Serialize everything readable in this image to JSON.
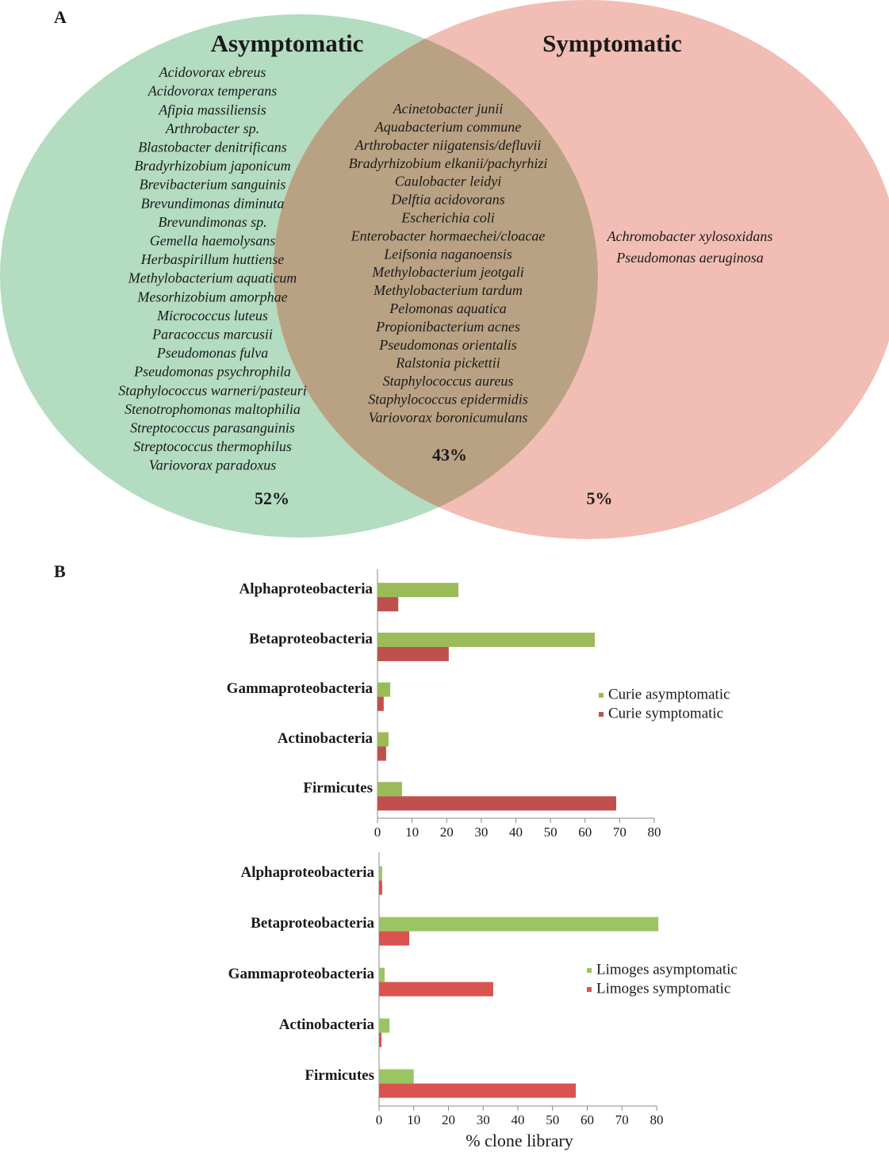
{
  "panel_labels": [
    "A",
    "B"
  ],
  "chart_data": [
    {
      "type": "venn",
      "sets": [
        {
          "name": "Asymptomatic",
          "color": "#b3dcc1",
          "members": [
            "Acidovorax ebreus",
            "Acidovorax temperans",
            "Afipia massiliensis",
            "Arthrobacter sp.",
            "Blastobacter denitrificans",
            "Bradyrhizobium japonicum",
            "Brevibacterium sanguinis",
            "Brevundimonas diminuta",
            "Brevundimonas sp.",
            "Gemella haemolysans",
            "Herbaspirillum huttiense",
            "Methylobacterium aquaticum",
            "Mesorhizobium amorphae",
            "Micrococcus luteus",
            "Paracoccus marcusii",
            "Pseudomonas fulva",
            "Pseudomonas psychrophila",
            "Staphylococcus warneri/pasteuri",
            "Stenotrophomonas maltophilia",
            "Streptococcus parasanguinis",
            "Streptococcus thermophilus",
            "Variovorax paradoxus"
          ]
        },
        {
          "name": "Symptomatic",
          "color": "#f2bdb4",
          "members": [
            "Achromobacter xylosoxidans",
            "Pseudomonas aeruginosa"
          ]
        }
      ],
      "intersection": {
        "color": "#b9a283",
        "members": [
          "Acinetobacter junii",
          "Aquabacterium commune",
          "Arthrobacter niigatensis/defluvii",
          "Bradyrhizobium elkanii/pachyrhizi",
          "Caulobacter leidyi",
          "Delftia acidovorans",
          "Escherichia coli",
          "Enterobacter hormaechei/cloacae",
          "Leifsonia naganoensis",
          "Methylobacterium jeotgali",
          "Methylobacterium tardum",
          "Pelomonas aquatica",
          "Propionibacterium acnes",
          "Pseudomonas orientalis",
          "Ralstonia pickettii",
          "Staphylococcus aureus",
          "Staphylococcus epidermidis",
          "Variovorax boronicumulans"
        ]
      },
      "values": [
        52,
        43,
        5
      ],
      "value_labels": [
        "52%",
        "43%",
        "5%"
      ]
    },
    {
      "type": "barh",
      "categories": [
        "Alphaproteobacteria",
        "Betaproteobacteria",
        "Gammaproteobacteria",
        "Actinobacteria",
        "Firmicutes"
      ],
      "series": [
        {
          "name": "Curie asymptomatic",
          "color": "#9bbb59",
          "values": [
            23.4,
            62.8,
            3.7,
            3.2,
            7.1
          ]
        },
        {
          "name": "Curie symptomatic",
          "color": "#c0504d",
          "values": [
            6,
            20.6,
            1.8,
            2.5,
            69
          ]
        }
      ],
      "xlim": [
        0,
        80
      ],
      "xticks": [
        0,
        10,
        20,
        30,
        40,
        50,
        60,
        70,
        80
      ],
      "legend": "right"
    },
    {
      "type": "barh",
      "categories": [
        "Alphaproteobacteria",
        "Betaproteobacteria",
        "Gammaproteobacteria",
        "Actinobacteria",
        "Firmicutes"
      ],
      "series": [
        {
          "name": "Limoges asymptomatic",
          "color": "#9bc563",
          "values": [
            0.9,
            80.5,
            1.6,
            3,
            10
          ]
        },
        {
          "name": "Limoges symptomatic",
          "color": "#d9534f",
          "values": [
            0.9,
            8.7,
            32.9,
            0.7,
            56.7
          ]
        }
      ],
      "xlim": [
        0,
        80
      ],
      "xticks": [
        0,
        10,
        20,
        30,
        40,
        50,
        60,
        70,
        80
      ],
      "legend": "right",
      "xlabel": "% clone library"
    }
  ]
}
